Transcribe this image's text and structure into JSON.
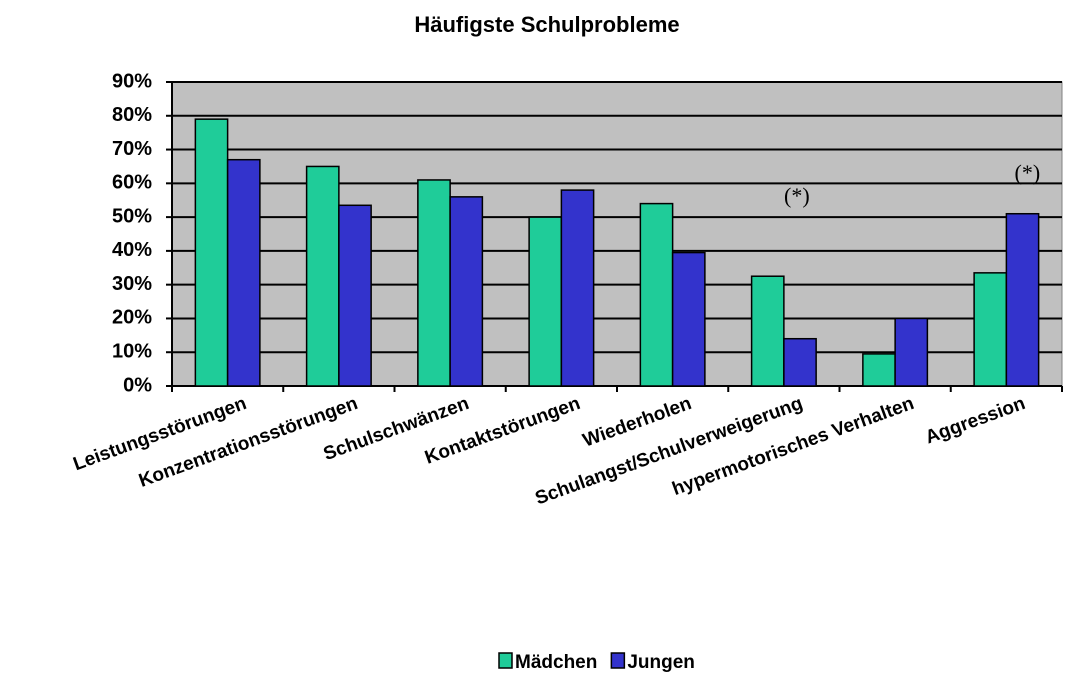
{
  "chart_data": {
    "type": "bar",
    "title": "Häufigste Schulprobleme",
    "categories": [
      "Leistungsstörungen",
      "Konzentrationsstörungen",
      "Schulschwänzen",
      "Kontaktstörungen",
      "Wiederholen",
      "Schulangst/Schulverweigerung",
      "hypermotorisches Verhalten",
      "Aggression"
    ],
    "series": [
      {
        "name": "Mädchen",
        "color": "#1fcc99",
        "values": [
          79,
          65,
          61,
          50,
          54,
          32.5,
          9.5,
          33.5
        ]
      },
      {
        "name": "Jungen",
        "color": "#3333cc",
        "values": [
          67,
          53.5,
          56,
          58,
          39.5,
          14,
          20,
          51
        ]
      }
    ],
    "annotations": [
      {
        "text": "(*)",
        "category": 5
      },
      {
        "text": "(*)",
        "category": 7
      }
    ],
    "ylim": [
      0,
      90
    ],
    "yticks": [
      {
        "value": 0,
        "label": "0%"
      },
      {
        "value": 10,
        "label": "10%"
      },
      {
        "value": 20,
        "label": "20%"
      },
      {
        "value": 30,
        "label": "30%"
      },
      {
        "value": 40,
        "label": "40%"
      },
      {
        "value": 50,
        "label": "50%"
      },
      {
        "value": 60,
        "label": "60%"
      },
      {
        "value": 70,
        "label": "70%"
      },
      {
        "value": 80,
        "label": "80%"
      },
      {
        "value": 90,
        "label": "90%"
      }
    ],
    "grid": true,
    "legend": "bottom",
    "plot_background": "#c0c0c0"
  }
}
